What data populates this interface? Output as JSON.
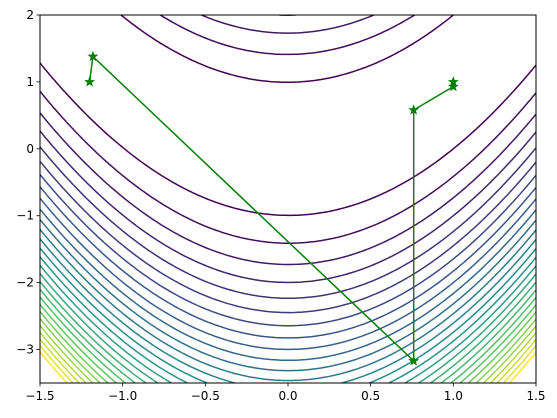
{
  "chart_data": {
    "type": "line",
    "title": "",
    "xlabel": "",
    "ylabel": "",
    "xlim": [
      -1.5,
      1.5
    ],
    "ylim": [
      -3.5,
      2
    ],
    "grid": false,
    "legend": "none",
    "x_ticks": [
      -1.5,
      -1.0,
      -0.5,
      0.0,
      0.5,
      1.0,
      1.5
    ],
    "x_tick_labels": [
      "−1.5",
      "−1.0",
      "−0.5",
      "0.0",
      "0.5",
      "1.0",
      "1.5"
    ],
    "y_ticks": [
      -3,
      -2,
      -1,
      0,
      1,
      2
    ],
    "y_tick_labels": [
      "−3",
      "−2",
      "−1",
      "0",
      "1",
      "2"
    ],
    "contour": {
      "function": "rosenbrock",
      "a": 1,
      "b": 100,
      "level_step": 100,
      "level_count": 28,
      "colormap": [
        "#440154",
        "#3b528b",
        "#21918c",
        "#5ec962",
        "#fde725"
      ]
    },
    "path": {
      "color": "#008000",
      "marker": "star",
      "points": [
        {
          "x": -1.2,
          "y": 1.0
        },
        {
          "x": -1.18,
          "y": 1.38
        },
        {
          "x": 0.76,
          "y": -3.17
        },
        {
          "x": 0.76,
          "y": 0.58
        },
        {
          "x": 1.0,
          "y": 0.93
        },
        {
          "x": 1.0,
          "y": 1.0
        }
      ]
    }
  }
}
